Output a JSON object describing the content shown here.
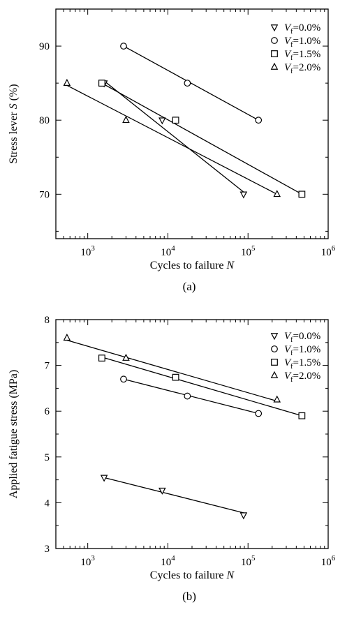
{
  "chart_data": [
    {
      "type": "scatter",
      "panel_label": "(a)",
      "xlabel": "Cycles to failure",
      "xlabel_var": "N",
      "ylabel": "Stress lever",
      "ylabel_var": "S",
      "ylabel_unit": "(%)",
      "xscale": "log",
      "xlim": [
        400,
        1000000
      ],
      "ylim": [
        64,
        95
      ],
      "xticks": [
        1000,
        10000,
        100000,
        1000000
      ],
      "xtick_labels": [
        {
          "base": "10",
          "exp": "3"
        },
        {
          "base": "10",
          "exp": "4"
        },
        {
          "base": "10",
          "exp": "5"
        },
        {
          "base": "10",
          "exp": "6"
        }
      ],
      "yticks": [
        70,
        80,
        90
      ],
      "ytick_labels": [
        "70",
        "80",
        "90"
      ],
      "legend_position": "top-right",
      "series": [
        {
          "name": "V_f=0.0%",
          "legend_var": "V",
          "legend_sub": "f",
          "legend_val": "=0.0%",
          "marker": "triangle-down",
          "points": [
            {
              "x": 1600,
              "y": 85
            },
            {
              "x": 8500,
              "y": 80
            },
            {
              "x": 88000,
              "y": 70
            }
          ],
          "fit": [
            {
              "x": 1600,
              "y": 85.3
            },
            {
              "x": 88000,
              "y": 70.3
            }
          ]
        },
        {
          "name": "V_f=1.0%",
          "legend_var": "V",
          "legend_sub": "f",
          "legend_val": "=1.0%",
          "marker": "circle",
          "points": [
            {
              "x": 2800,
              "y": 90
            },
            {
              "x": 17500,
              "y": 85
            },
            {
              "x": 135000,
              "y": 80
            }
          ],
          "fit": [
            {
              "x": 2800,
              "y": 90
            },
            {
              "x": 135000,
              "y": 80
            }
          ]
        },
        {
          "name": "V_f=1.5%",
          "legend_var": "V",
          "legend_sub": "f",
          "legend_val": "=1.5%",
          "marker": "square",
          "points": [
            {
              "x": 1500,
              "y": 85
            },
            {
              "x": 12500,
              "y": 80
            },
            {
              "x": 470000,
              "y": 70
            }
          ],
          "fit": [
            {
              "x": 1500,
              "y": 85
            },
            {
              "x": 470000,
              "y": 70
            }
          ]
        },
        {
          "name": "V_f=2.0%",
          "legend_var": "V",
          "legend_sub": "f",
          "legend_val": "=2.0%",
          "marker": "triangle-up",
          "points": [
            {
              "x": 550,
              "y": 85
            },
            {
              "x": 3000,
              "y": 80
            },
            {
              "x": 230000,
              "y": 70
            }
          ],
          "fit": [
            {
              "x": 550,
              "y": 84.7
            },
            {
              "x": 230000,
              "y": 70
            }
          ]
        }
      ]
    },
    {
      "type": "scatter",
      "panel_label": "(b)",
      "xlabel": "Cycles to failure",
      "xlabel_var": "N",
      "ylabel": "Applied fatigue stress (MPa)",
      "ylabel_var": "",
      "ylabel_unit": "",
      "xscale": "log",
      "xlim": [
        400,
        1000000
      ],
      "ylim": [
        3,
        8
      ],
      "xticks": [
        1000,
        10000,
        100000,
        1000000
      ],
      "xtick_labels": [
        {
          "base": "10",
          "exp": "3"
        },
        {
          "base": "10",
          "exp": "4"
        },
        {
          "base": "10",
          "exp": "5"
        },
        {
          "base": "10",
          "exp": "6"
        }
      ],
      "yticks": [
        3,
        4,
        5,
        6,
        7,
        8
      ],
      "ytick_labels": [
        "3",
        "4",
        "5",
        "6",
        "7",
        "8"
      ],
      "legend_position": "top-right",
      "series": [
        {
          "name": "V_f=0.0%",
          "legend_var": "V",
          "legend_sub": "f",
          "legend_val": "=0.0%",
          "marker": "triangle-down",
          "points": [
            {
              "x": 1600,
              "y": 4.55
            },
            {
              "x": 8500,
              "y": 4.27
            },
            {
              "x": 88000,
              "y": 3.73
            }
          ],
          "fit": [
            {
              "x": 1600,
              "y": 4.55
            },
            {
              "x": 88000,
              "y": 3.78
            }
          ]
        },
        {
          "name": "V_f=1.0%",
          "legend_var": "V",
          "legend_sub": "f",
          "legend_val": "=1.0%",
          "marker": "circle",
          "points": [
            {
              "x": 2800,
              "y": 6.7
            },
            {
              "x": 17500,
              "y": 6.33
            },
            {
              "x": 135000,
              "y": 5.95
            }
          ],
          "fit": [
            {
              "x": 2800,
              "y": 6.7
            },
            {
              "x": 135000,
              "y": 5.95
            }
          ]
        },
        {
          "name": "V_f=1.5%",
          "legend_var": "V",
          "legend_sub": "f",
          "legend_val": "=1.5%",
          "marker": "square",
          "points": [
            {
              "x": 1500,
              "y": 7.16
            },
            {
              "x": 12500,
              "y": 6.74
            },
            {
              "x": 470000,
              "y": 5.9
            }
          ],
          "fit": [
            {
              "x": 1500,
              "y": 7.18
            },
            {
              "x": 470000,
              "y": 5.9
            }
          ]
        },
        {
          "name": "V_f=2.0%",
          "legend_var": "V",
          "legend_sub": "f",
          "legend_val": "=2.0%",
          "marker": "triangle-up",
          "points": [
            {
              "x": 550,
              "y": 7.6
            },
            {
              "x": 3000,
              "y": 7.16
            },
            {
              "x": 230000,
              "y": 6.25
            }
          ],
          "fit": [
            {
              "x": 550,
              "y": 7.55
            },
            {
              "x": 230000,
              "y": 6.22
            }
          ]
        }
      ]
    }
  ]
}
